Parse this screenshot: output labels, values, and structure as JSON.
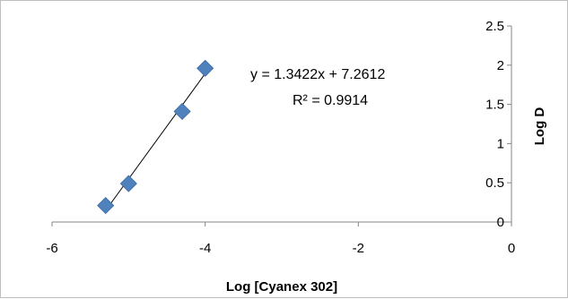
{
  "chart_data": {
    "type": "scatter",
    "title": "",
    "xlabel": "Log [Cyanex 302]",
    "ylabel": "Log D",
    "xlim": [
      -6,
      0
    ],
    "ylim": [
      0,
      2.5
    ],
    "x_ticks": [
      -6,
      -4,
      -2,
      0
    ],
    "x_tick_labels": [
      "-6",
      "-4",
      "-2",
      "0"
    ],
    "y_ticks": [
      0,
      0.5,
      1,
      1.5,
      2,
      2.5
    ],
    "y_tick_labels": [
      "0",
      "0.5",
      "1",
      "1.5",
      "2",
      "2.5"
    ],
    "grid": false,
    "legend": "none",
    "y_axis_position": "right",
    "marker": "diamond",
    "marker_color": "#4f81bd",
    "trendline_color": "#000000",
    "series": [
      {
        "points": [
          {
            "x": -5.3,
            "y": 0.21
          },
          {
            "x": -5.0,
            "y": 0.49
          },
          {
            "x": -4.3,
            "y": 1.41
          },
          {
            "x": -4.0,
            "y": 1.96
          }
        ]
      }
    ],
    "trendline": {
      "slope": 1.3422,
      "intercept": 7.2612,
      "x_range": [
        -5.3,
        -4.0
      ],
      "equation_label": "y = 1.3422x + 7.2612",
      "r2_label": "R² = 0.9914"
    }
  }
}
